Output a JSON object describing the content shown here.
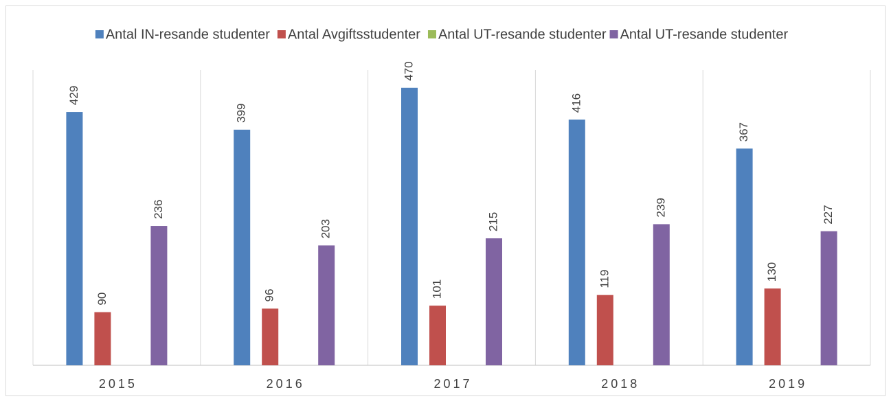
{
  "chart_data": {
    "type": "bar",
    "categories": [
      "2015",
      "2016",
      "2017",
      "2018",
      "2019"
    ],
    "series": [
      {
        "name": "Antal IN-resande studenter",
        "color": "#4f81bd",
        "values": [
          429,
          399,
          470,
          416,
          367
        ]
      },
      {
        "name": "Antal Avgiftsstudenter",
        "color": "#c0504d",
        "values": [
          90,
          96,
          101,
          119,
          130
        ]
      },
      {
        "name": "Antal UT-resande studenter",
        "color": "#9bbb59",
        "values": [
          null,
          null,
          null,
          null,
          null
        ]
      },
      {
        "name": "Antal UT-resande studenter",
        "color": "#8064a2",
        "values": [
          236,
          203,
          215,
          239,
          227
        ]
      }
    ],
    "ylim": [
      0,
      500
    ],
    "legend": "top"
  }
}
